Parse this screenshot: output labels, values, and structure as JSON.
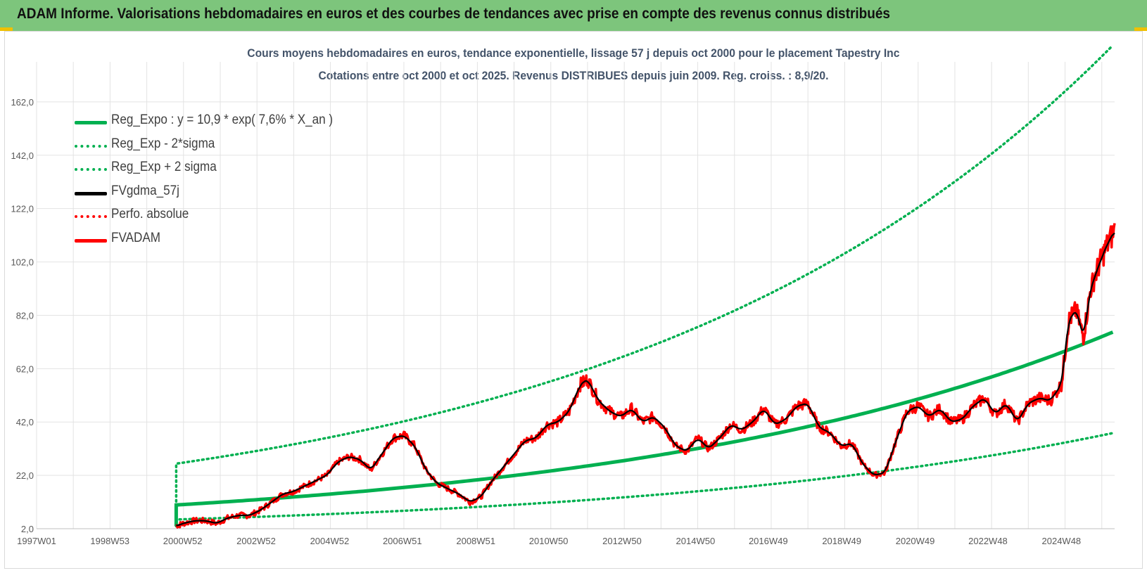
{
  "banner": {
    "title": "ADAM Informe. Valorisations hebdomadaires en euros et des courbes de tendances avec prise en compte des revenus connus distribués",
    "background": "#7dc57c"
  },
  "chart_data": {
    "type": "line",
    "title": "Cours moyens hebdomadaires en euros, tendance exponentielle, lissage 57 j depuis oct 2000 pour le placement Tapestry Inc",
    "subtitle": "Cotations entre oct 2000 et oct 2025.  Revenus DISTRIBUES depuis juin 2009. Reg. croiss. : 8,9/20.",
    "xlabel": "",
    "ylabel": "",
    "x_ticks": [
      "1997W01",
      "1998W53",
      "2000W52",
      "2002W52",
      "2004W52",
      "2006W51",
      "2008W51",
      "2010W50",
      "2012W50",
      "2014W50",
      "2016W49",
      "2018W49",
      "2020W49",
      "2022W48",
      "2024W48"
    ],
    "x_range": [
      1997.0,
      2026.35
    ],
    "y_ticks": [
      "2,0",
      "22,0",
      "42,0",
      "62,0",
      "82,0",
      "102,0",
      "122,0",
      "142,0",
      "162,0"
    ],
    "ylim": [
      2,
      177
    ],
    "grid": true,
    "legend_position": "top-left",
    "regression": {
      "a": 10.9,
      "rate": 0.076,
      "start_year": 2000.8,
      "sigma_factor_low": 0.5,
      "sigma_factor_high": 2.42
    },
    "series": [
      {
        "name": "Reg_Expo : y = 10,9 * exp( 7,6% *  X_an )",
        "color": "#00b050",
        "style": "solid",
        "role": "trend"
      },
      {
        "name": "Reg_Exp - 2*sigma",
        "color": "#00b050",
        "style": "dotted",
        "role": "low"
      },
      {
        "name": "Reg_Exp + 2 sigma",
        "color": "#00b050",
        "style": "dotted",
        "role": "high"
      },
      {
        "name": "FVgdma_57j",
        "color": "#000000",
        "style": "solid",
        "role": "smooth"
      },
      {
        "name": "Perfo. absolue",
        "color": "#ff0000",
        "style": "dotted",
        "role": "perfo"
      },
      {
        "name": "FVADAM",
        "color": "#ff0000",
        "style": "solid",
        "role": "price"
      }
    ],
    "price_points": {
      "x": [
        2000.8,
        2001.0,
        2001.3,
        2001.6,
        2001.9,
        2002.2,
        2002.5,
        2002.8,
        2003.1,
        2003.4,
        2003.7,
        2004.0,
        2004.3,
        2004.6,
        2004.9,
        2005.2,
        2005.5,
        2005.8,
        2006.1,
        2006.4,
        2006.7,
        2007.0,
        2007.3,
        2007.6,
        2007.9,
        2008.2,
        2008.5,
        2008.8,
        2009.1,
        2009.4,
        2009.7,
        2010.0,
        2010.3,
        2010.6,
        2010.9,
        2011.2,
        2011.5,
        2011.8,
        2012.0,
        2012.3,
        2012.6,
        2012.9,
        2013.2,
        2013.5,
        2013.8,
        2014.1,
        2014.4,
        2014.7,
        2015.0,
        2015.3,
        2015.6,
        2015.9,
        2016.2,
        2016.5,
        2016.8,
        2017.1,
        2017.4,
        2017.7,
        2018.0,
        2018.3,
        2018.6,
        2018.9,
        2019.2,
        2019.5,
        2019.8,
        2020.1,
        2020.4,
        2020.7,
        2021.0,
        2021.3,
        2021.6,
        2021.9,
        2022.2,
        2022.5,
        2022.8,
        2023.1,
        2023.4,
        2023.7,
        2024.0,
        2024.3,
        2024.6,
        2024.9,
        2025.1,
        2025.3,
        2025.5,
        2025.7,
        2025.9,
        2026.1,
        2026.35
      ],
      "y": [
        3,
        4,
        5,
        5,
        4,
        6,
        7,
        7,
        9,
        12,
        15,
        16,
        18,
        20,
        22,
        27,
        29,
        28,
        24,
        30,
        36,
        37,
        33,
        24,
        19,
        17,
        15,
        12,
        14,
        20,
        25,
        30,
        35,
        36,
        41,
        42,
        46,
        56,
        58,
        50,
        46,
        44,
        47,
        42,
        44,
        40,
        33,
        31,
        36,
        32,
        36,
        41,
        39,
        42,
        47,
        41,
        43,
        48,
        49,
        40,
        38,
        33,
        34,
        26,
        22,
        23,
        35,
        46,
        48,
        44,
        47,
        42,
        43,
        48,
        51,
        45,
        49,
        42,
        49,
        51,
        50,
        56,
        80,
        84,
        74,
        92,
        100,
        107,
        114
      ]
    }
  }
}
